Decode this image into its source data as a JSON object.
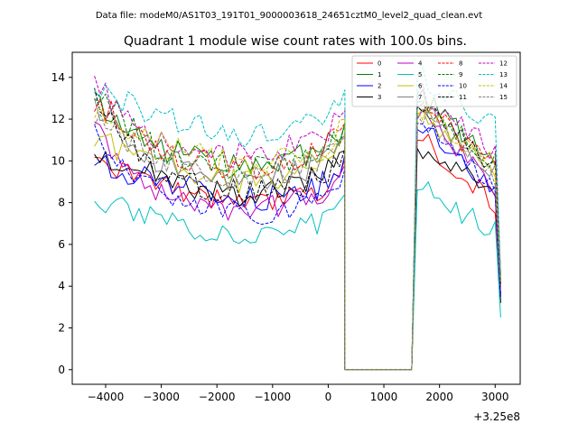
{
  "chart_data": {
    "type": "line",
    "suptitle": "Data file: modeM0/AS1T03_191T01_9000003618_24651cztM0_level2_quad_clean.evt",
    "title": "Quadrant 1 module wise count rates with 100.0s bins.",
    "xlabel": "",
    "ylabel": "",
    "x_offset_label": "+3.25e8",
    "xlim": [
      -4600,
      3450
    ],
    "ylim": [
      -0.7,
      15.2
    ],
    "xticks": [
      -4000,
      -3000,
      -2000,
      -1000,
      0,
      1000,
      2000,
      3000
    ],
    "yticks": [
      0,
      2,
      4,
      6,
      8,
      10,
      12,
      14
    ],
    "grid": false,
    "legend_position": "top-right",
    "x_seg1_start": -4200,
    "x_seg1_step": 100,
    "x_seg1_points": 46,
    "x_gap": [
      300,
      1500
    ],
    "x_seg2_start": 1600,
    "x_seg2_step": 100,
    "x_seg2_points": 16,
    "series": [
      {
        "name": "0",
        "color": "#ff0000",
        "dash": "solid",
        "base": 7.9,
        "start": 9.8,
        "peak": 11.0,
        "tail": 8.0,
        "end": 4.0
      },
      {
        "name": "1",
        "color": "#008000",
        "dash": "solid",
        "base": 9.6,
        "start": 12.8,
        "peak": 13.0,
        "tail": 9.8,
        "end": 4.5
      },
      {
        "name": "2",
        "color": "#0000ff",
        "dash": "solid",
        "base": 8.1,
        "start": 9.9,
        "peak": 11.5,
        "tail": 8.7,
        "end": 3.5
      },
      {
        "name": "3",
        "color": "#000000",
        "dash": "solid",
        "base": 8.3,
        "start": 10.4,
        "peak": 10.6,
        "tail": 8.8,
        "end": 3.2
      },
      {
        "name": "4",
        "color": "#c000c0",
        "dash": "solid",
        "base": 7.6,
        "start": 11.4,
        "peak": 12.0,
        "tail": 8.6,
        "end": 3.6
      },
      {
        "name": "5",
        "color": "#00c0c0",
        "dash": "solid",
        "base": 6.2,
        "start": 8.1,
        "peak": 8.6,
        "tail": 6.6,
        "end": 2.5
      },
      {
        "name": "6",
        "color": "#c0c000",
        "dash": "solid",
        "base": 8.9,
        "start": 11.0,
        "peak": 12.2,
        "tail": 9.3,
        "end": 4.2
      },
      {
        "name": "7",
        "color": "#808080",
        "dash": "solid",
        "base": 9.0,
        "start": 12.8,
        "peak": 12.6,
        "tail": 9.4,
        "end": 4.0
      },
      {
        "name": "8",
        "color": "#ff0000",
        "dash": "dashed",
        "base": 9.6,
        "start": 12.9,
        "peak": 12.6,
        "tail": 9.6,
        "end": 4.0
      },
      {
        "name": "9",
        "color": "#008000",
        "dash": "dashed",
        "base": 9.6,
        "start": 13.2,
        "peak": 12.8,
        "tail": 10.0,
        "end": 4.3
      },
      {
        "name": "10",
        "color": "#0000ff",
        "dash": "dashed",
        "base": 7.4,
        "start": 11.3,
        "peak": 11.8,
        "tail": 8.6,
        "end": 3.6
      },
      {
        "name": "11",
        "color": "#000000",
        "dash": "dashed",
        "base": 8.4,
        "start": 13.3,
        "peak": 12.6,
        "tail": 9.6,
        "end": 4.0
      },
      {
        "name": "12",
        "color": "#c000c0",
        "dash": "dashed",
        "base": 10.2,
        "start": 13.6,
        "peak": 13.2,
        "tail": 10.4,
        "end": 4.5
      },
      {
        "name": "13",
        "color": "#00c0c0",
        "dash": "dashed",
        "base": 11.2,
        "start": 13.6,
        "peak": 14.0,
        "tail": 11.8,
        "end": 4.5
      },
      {
        "name": "14",
        "color": "#c0c000",
        "dash": "dashed",
        "base": 9.8,
        "start": 12.6,
        "peak": 12.4,
        "tail": 10.0,
        "end": 4.2
      },
      {
        "name": "15",
        "color": "#808080",
        "dash": "dashed",
        "base": 9.1,
        "start": 12.0,
        "peak": 12.2,
        "tail": 9.3,
        "end": 4.0
      }
    ]
  }
}
